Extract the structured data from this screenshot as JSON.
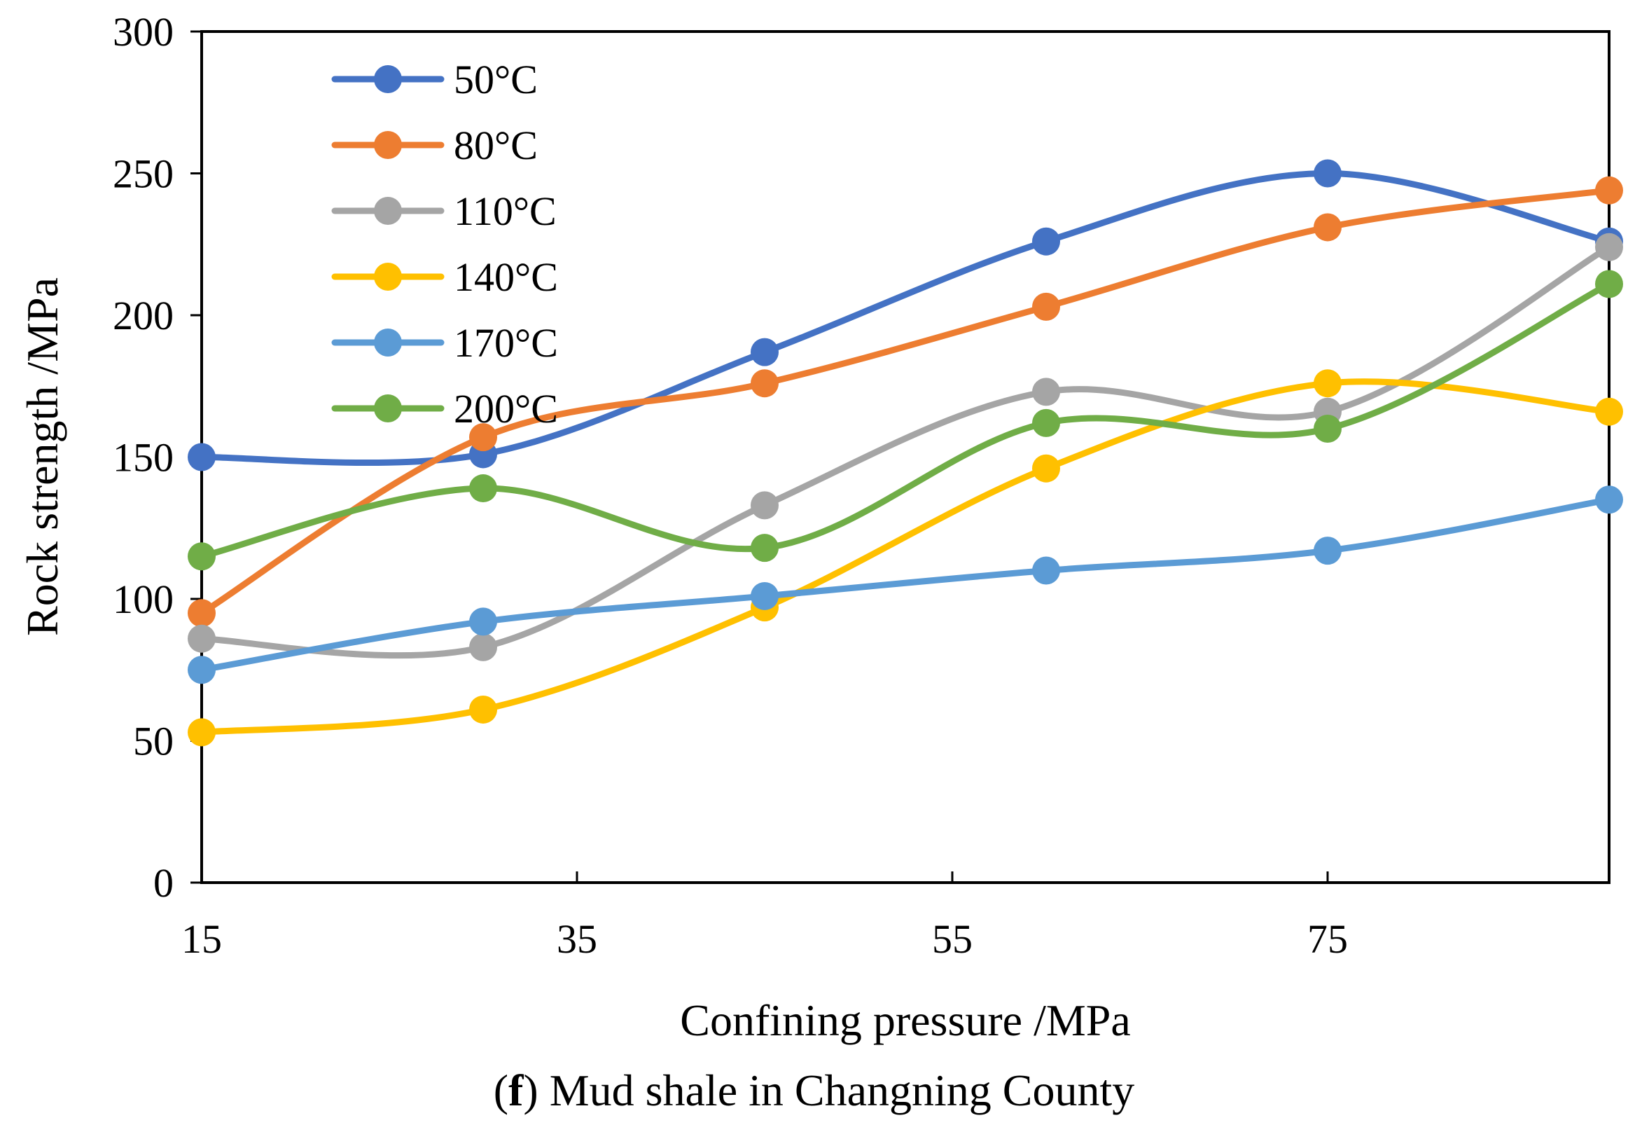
{
  "chart_data": {
    "type": "line",
    "smooth": true,
    "title": "",
    "xlabel": "Confining pressure /MPa",
    "ylabel": "Rock strength /MPa",
    "xlim": [
      15,
      90
    ],
    "ylim": [
      0,
      300
    ],
    "xticks": [
      15,
      35,
      55,
      75
    ],
    "yticks": [
      0,
      50,
      100,
      150,
      200,
      250,
      300
    ],
    "grid": false,
    "legend_position": "top-left",
    "x": [
      15,
      30,
      45,
      60,
      75,
      90
    ],
    "series": [
      {
        "name": "50°C",
        "color": "#4472C4",
        "values": [
          150,
          151,
          187,
          226,
          250,
          226
        ]
      },
      {
        "name": "80°C",
        "color": "#ED7D31",
        "values": [
          95,
          157,
          176,
          203,
          231,
          244
        ]
      },
      {
        "name": "110°C",
        "color": "#A5A5A5",
        "values": [
          86,
          83,
          133,
          173,
          166,
          224
        ]
      },
      {
        "name": "140°C",
        "color": "#FFC000",
        "values": [
          53,
          61,
          97,
          146,
          176,
          166
        ]
      },
      {
        "name": "170°C",
        "color": "#5B9BD5",
        "values": [
          75,
          92,
          101,
          110,
          117,
          135
        ]
      },
      {
        "name": "200°C",
        "color": "#70AD47",
        "values": [
          115,
          139,
          118,
          162,
          160,
          211
        ]
      }
    ]
  },
  "caption": {
    "prefix": "(",
    "letter": "f",
    "text": ") Mud shale in Changning County"
  }
}
